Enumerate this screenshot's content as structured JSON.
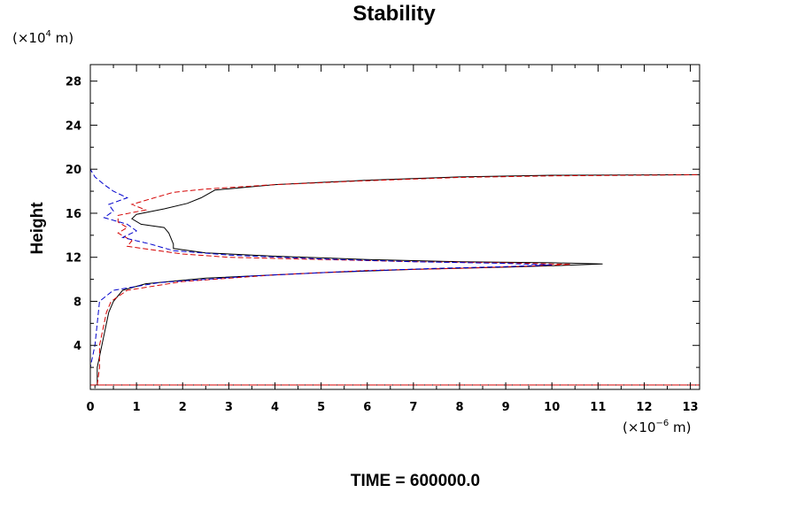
{
  "chart_data": {
    "type": "line",
    "title": "Stability",
    "ylabel": "Height",
    "y_unit_prefix": "(×10",
    "y_unit_exp": "4",
    "y_unit_suffix": " m)",
    "x_unit_prefix": "(×10",
    "x_unit_exp": "−6",
    "x_unit_suffix": " m)",
    "footer": "TIME = 600000.0",
    "xlim": [
      0,
      13.2
    ],
    "ylim": [
      0,
      29.5
    ],
    "xticks": [
      0,
      1,
      2,
      3,
      4,
      5,
      6,
      7,
      8,
      9,
      10,
      11,
      12,
      13
    ],
    "yticks": [
      4,
      8,
      12,
      16,
      20,
      24,
      28
    ],
    "grid": false,
    "series": [
      {
        "color": "#000000",
        "dash": "solid",
        "points": [
          [
            0.1,
            0.1
          ],
          [
            0.1,
            0.4
          ],
          [
            0.8,
            0.4
          ],
          [
            13.2,
            0.4
          ],
          [
            0.15,
            0.4
          ],
          [
            0.15,
            2
          ],
          [
            0.2,
            3
          ],
          [
            0.3,
            5
          ],
          [
            0.35,
            6
          ],
          [
            0.4,
            7
          ],
          [
            0.5,
            8
          ],
          [
            0.7,
            9
          ],
          [
            1.2,
            9.6
          ],
          [
            2.5,
            10.1
          ],
          [
            5,
            10.6
          ],
          [
            7,
            10.9
          ],
          [
            9,
            11.1
          ],
          [
            10.5,
            11.3
          ],
          [
            11.1,
            11.4
          ],
          [
            10,
            11.5
          ],
          [
            8,
            11.6
          ],
          [
            6,
            11.8
          ],
          [
            4,
            12.1
          ],
          [
            2.5,
            12.4
          ],
          [
            1.8,
            12.8
          ],
          [
            1.8,
            13.2
          ],
          [
            1.7,
            14.2
          ],
          [
            1.6,
            14.7
          ],
          [
            1.1,
            15.0
          ],
          [
            0.9,
            15.5
          ],
          [
            1.0,
            15.9
          ],
          [
            1.6,
            16.4
          ],
          [
            2.1,
            16.9
          ],
          [
            2.4,
            17.4
          ],
          [
            2.7,
            18.1
          ],
          [
            4,
            18.6
          ],
          [
            6,
            19.0
          ],
          [
            8,
            19.3
          ],
          [
            10,
            19.45
          ],
          [
            13.2,
            19.5
          ]
        ]
      },
      {
        "color": "#d40000",
        "dash": "dashed",
        "points": [
          [
            0.0,
            0.4
          ],
          [
            13.2,
            0.4
          ],
          [
            0.15,
            0.4
          ],
          [
            0.2,
            2
          ],
          [
            0.2,
            4
          ],
          [
            0.3,
            6
          ],
          [
            0.35,
            7
          ],
          [
            0.45,
            8
          ],
          [
            0.8,
            9
          ],
          [
            2,
            9.8
          ],
          [
            4,
            10.4
          ],
          [
            6,
            10.8
          ],
          [
            8,
            11.0
          ],
          [
            9.5,
            11.2
          ],
          [
            10.4,
            11.35
          ],
          [
            9,
            11.5
          ],
          [
            7,
            11.6
          ],
          [
            5,
            11.8
          ],
          [
            3,
            12.0
          ],
          [
            2,
            12.3
          ],
          [
            1.3,
            12.7
          ],
          [
            0.8,
            13.0
          ],
          [
            0.9,
            13.5
          ],
          [
            0.6,
            14.2
          ],
          [
            0.8,
            14.7
          ],
          [
            0.6,
            15.2
          ],
          [
            0.6,
            15.8
          ],
          [
            1.2,
            16.3
          ],
          [
            0.9,
            16.8
          ],
          [
            1.3,
            17.3
          ],
          [
            1.8,
            17.9
          ],
          [
            2.5,
            18.2
          ],
          [
            4,
            18.6
          ],
          [
            6,
            18.95
          ],
          [
            8,
            19.25
          ],
          [
            10,
            19.4
          ],
          [
            12,
            19.45
          ],
          [
            13.2,
            19.5
          ]
        ]
      },
      {
        "color": "#0000cc",
        "dash": "dashed",
        "points": [
          [
            0.0,
            0.3
          ],
          [
            0.0,
            2
          ],
          [
            0.1,
            4
          ],
          [
            0.15,
            6
          ],
          [
            0.2,
            8
          ],
          [
            0.5,
            9
          ],
          [
            1.5,
            9.7
          ],
          [
            3.5,
            10.3
          ],
          [
            5.5,
            10.7
          ],
          [
            7.5,
            11.0
          ],
          [
            9,
            11.15
          ],
          [
            10,
            11.3
          ],
          [
            9,
            11.45
          ],
          [
            7,
            11.6
          ],
          [
            5,
            11.85
          ],
          [
            3,
            12.2
          ],
          [
            1.8,
            12.6
          ],
          [
            1.3,
            13.2
          ],
          [
            0.7,
            13.8
          ],
          [
            1.0,
            14.4
          ],
          [
            0.8,
            15.0
          ],
          [
            0.3,
            15.6
          ],
          [
            0.5,
            16.2
          ],
          [
            0.4,
            16.8
          ],
          [
            0.8,
            17.4
          ],
          [
            0.5,
            18.0
          ],
          [
            0.3,
            18.6
          ],
          [
            0.1,
            19.3
          ],
          [
            0.0,
            20
          ],
          [
            0.0,
            24
          ],
          [
            0.0,
            29.5
          ]
        ]
      }
    ]
  }
}
